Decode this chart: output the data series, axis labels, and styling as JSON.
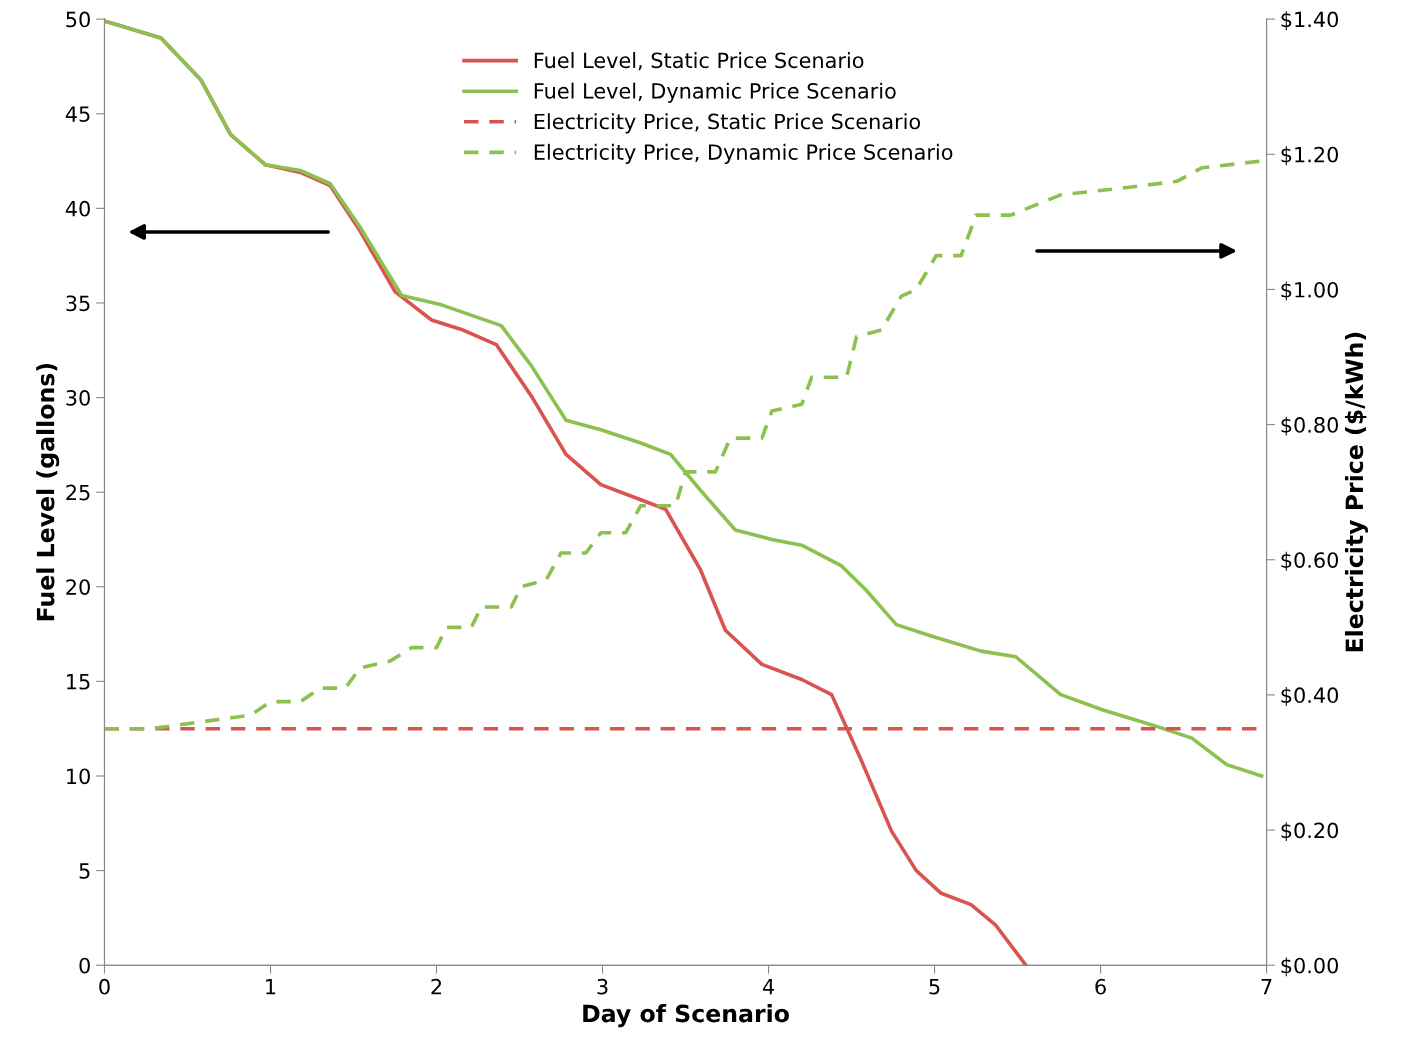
{
  "chart_data": {
    "type": "line",
    "xlabel": "Day of Scenario",
    "ylabel": "Fuel Level (gallons)",
    "y2label": "Electricity Price ($/kWh)",
    "xlim": [
      0,
      7
    ],
    "xticks": [
      0,
      1,
      2,
      3,
      4,
      5,
      6,
      7
    ],
    "ylim": [
      0,
      50
    ],
    "yticks": [
      0,
      5,
      10,
      15,
      20,
      25,
      30,
      35,
      40,
      45,
      50
    ],
    "y2lim": [
      0,
      1.4
    ],
    "y2ticks": [
      {
        "value": 0,
        "label": "$0.00"
      },
      {
        "value": 0.2,
        "label": "$0.20"
      },
      {
        "value": 0.4,
        "label": "$0.40"
      },
      {
        "value": 0.6,
        "label": "$0.60"
      },
      {
        "value": 0.8,
        "label": "$0.80"
      },
      {
        "value": 1.0,
        "label": "$1.00"
      },
      {
        "value": 1.2,
        "label": "$1.20"
      },
      {
        "value": 1.4,
        "label": "$1.40"
      }
    ],
    "grid": false,
    "legend": "top",
    "marker": "none",
    "series": [
      {
        "name": "Fuel Level, Static Price Scenario",
        "color": "#d9534f",
        "line_style": "solid",
        "x": [
          0,
          0.34,
          0.58,
          0.76,
          0.97,
          1.18,
          1.36,
          1.54,
          1.75,
          1.97,
          2.15,
          2.36,
          2.57,
          2.78,
          2.99,
          3.23,
          3.38,
          3.59,
          3.74,
          3.96,
          4.2,
          4.38,
          4.56,
          4.74,
          4.89,
          5.04,
          5.22,
          5.37,
          5.55
        ],
        "values": [
          49.9,
          49.0,
          46.8,
          43.9,
          42.3,
          41.9,
          41.2,
          38.8,
          35.6,
          34.1,
          33.6,
          32.8,
          30.1,
          27.0,
          25.4,
          24.6,
          24.1,
          20.9,
          17.7,
          15.9,
          15.1,
          14.3,
          10.8,
          7.1,
          5.0,
          3.8,
          3.2,
          2.1,
          0
        ]
      },
      {
        "name": "Fuel Level, Dynamic Price Scenario",
        "color": "#8cc152",
        "line_style": "solid",
        "x": [
          0,
          0.34,
          0.58,
          0.76,
          0.97,
          1.18,
          1.36,
          1.54,
          1.79,
          2.03,
          2.39,
          2.57,
          2.78,
          2.99,
          3.23,
          3.41,
          3.59,
          3.8,
          4.02,
          4.2,
          4.44,
          4.59,
          4.77,
          4.98,
          5.28,
          5.49,
          5.76,
          6.01,
          6.31,
          6.55,
          6.76,
          6.97
        ],
        "values": [
          49.9,
          49.0,
          46.8,
          43.9,
          42.3,
          42.0,
          41.3,
          39.0,
          35.4,
          34.9,
          33.8,
          31.7,
          28.8,
          28.3,
          27.6,
          27.0,
          25.1,
          23.0,
          22.5,
          22.2,
          21.1,
          19.8,
          18.0,
          17.4,
          16.6,
          16.3,
          14.3,
          13.5,
          12.7,
          12.0,
          10.6,
          10.0
        ]
      },
      {
        "name": "Electricity Price, Static Price Scenario",
        "color": "#d9534f",
        "line_style": "dashed",
        "axis": "y2",
        "x": [
          0,
          6.97
        ],
        "values": [
          0.35,
          0.35
        ]
      },
      {
        "name": "Electricity Price, Dynamic Price Scenario",
        "color": "#8cc152",
        "line_style": "dashed",
        "axis": "y2",
        "x": [
          0,
          0.28,
          0.58,
          0.88,
          1.0,
          1.18,
          1.3,
          1.45,
          1.54,
          1.72,
          1.85,
          2.0,
          2.06,
          2.21,
          2.27,
          2.45,
          2.51,
          2.66,
          2.75,
          2.9,
          2.99,
          3.14,
          3.23,
          3.44,
          3.5,
          3.68,
          3.77,
          3.96,
          4.02,
          4.2,
          4.26,
          4.47,
          4.53,
          4.68,
          4.8,
          4.89,
          5.01,
          5.16,
          5.25,
          5.46,
          5.76,
          6.13,
          6.46,
          6.61,
          6.97
        ],
        "values": [
          0.35,
          0.35,
          0.36,
          0.37,
          0.39,
          0.39,
          0.41,
          0.41,
          0.44,
          0.45,
          0.47,
          0.47,
          0.5,
          0.5,
          0.53,
          0.53,
          0.56,
          0.57,
          0.61,
          0.61,
          0.64,
          0.64,
          0.68,
          0.68,
          0.73,
          0.73,
          0.78,
          0.78,
          0.82,
          0.83,
          0.87,
          0.87,
          0.93,
          0.94,
          0.99,
          1.0,
          1.05,
          1.05,
          1.11,
          1.11,
          1.14,
          1.15,
          1.16,
          1.18,
          1.19
        ]
      }
    ]
  }
}
